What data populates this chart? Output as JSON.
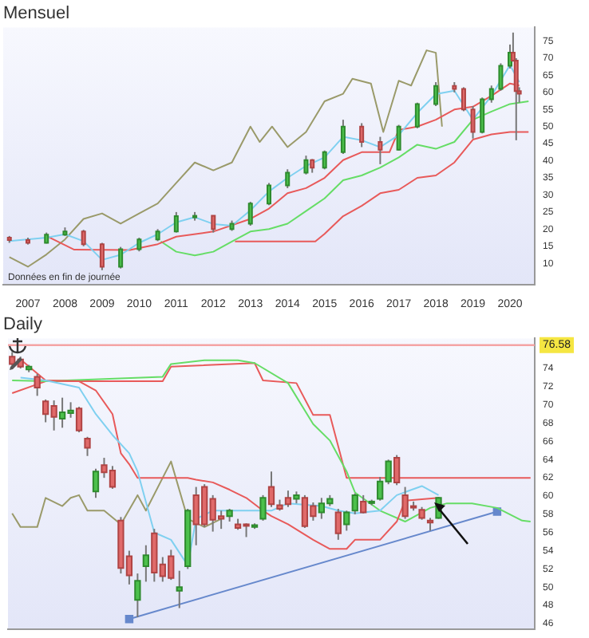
{
  "chart_data": [
    {
      "type": "candlestick",
      "title": "Mensuel",
      "annotations": [
        "Données en fin de journée"
      ],
      "marker": "none",
      "x": [
        "2006-07",
        "2007-01",
        "2007-07",
        "2008-01",
        "2008-07",
        "2009-01",
        "2009-07",
        "2010-01",
        "2010-07",
        "2011-01",
        "2011-07",
        "2012-01",
        "2012-07",
        "2013-01",
        "2013-07",
        "2014-01",
        "2014-07",
        "2014-09",
        "2015-01",
        "2015-07",
        "2016-01",
        "2016-07",
        "2017-01",
        "2017-07",
        "2018-01",
        "2018-07",
        "2018-10",
        "2019-01",
        "2019-04",
        "2019-07",
        "2019-10",
        "2020-01",
        "2020-02",
        "2020-03",
        "2020-04"
      ],
      "ohlc": [
        [
          17.5,
          18,
          16,
          16.8
        ],
        [
          16.8,
          17.5,
          15.5,
          16
        ],
        [
          16,
          19,
          15.8,
          18.4
        ],
        [
          18.4,
          20.5,
          18,
          19.3
        ],
        [
          19.3,
          19.8,
          15,
          15.6
        ],
        [
          15.6,
          16,
          8,
          9
        ],
        [
          9,
          14.8,
          8.5,
          14.1
        ],
        [
          14.1,
          17.5,
          13.5,
          17
        ],
        [
          17,
          20,
          16.5,
          19.3
        ],
        [
          19.3,
          25,
          19,
          23.8
        ],
        [
          23.8,
          25,
          22.5,
          23.9
        ],
        [
          23.9,
          24,
          19,
          20
        ],
        [
          20,
          22.5,
          19.5,
          21.6
        ],
        [
          21.6,
          28,
          21,
          27.5
        ],
        [
          27.5,
          33.5,
          27,
          32.8
        ],
        [
          32.8,
          37.5,
          32,
          36.5
        ],
        [
          36.5,
          41.5,
          36,
          40.2
        ],
        [
          40.2,
          40.5,
          36.5,
          38
        ],
        [
          38,
          43,
          37.5,
          42.5
        ],
        [
          42.5,
          52,
          42,
          50
        ],
        [
          50,
          51,
          44,
          45.5
        ],
        [
          45.5,
          47,
          39,
          43.2
        ],
        [
          43.2,
          50.5,
          43,
          50
        ],
        [
          50,
          57,
          49.5,
          56.6
        ],
        [
          56.6,
          63,
          56,
          61.9
        ],
        [
          61.9,
          63,
          60,
          61
        ],
        [
          61,
          61.5,
          54.5,
          55
        ],
        [
          55,
          56,
          46.5,
          48.4
        ],
        [
          48.4,
          58.5,
          48,
          58
        ],
        [
          58,
          62,
          57,
          61
        ],
        [
          61,
          68.5,
          60.5,
          67.8
        ],
        [
          67.8,
          74,
          67,
          71.6
        ],
        [
          71.6,
          77.5,
          69,
          69.3
        ],
        [
          69.3,
          70,
          46,
          60.4
        ],
        [
          60.4,
          61.5,
          57,
          59.6
        ]
      ],
      "series": [
        {
          "type": "line",
          "color": "#7fd0f0",
          "x": [
            "2006-07",
            "2007-07",
            "2008-01",
            "2008-07",
            "2009-01",
            "2009-07",
            "2010-01",
            "2010-07",
            "2011-01",
            "2011-07",
            "2012-01",
            "2012-07",
            "2013-01",
            "2013-07",
            "2014-01",
            "2014-07",
            "2015-01",
            "2015-07",
            "2016-01",
            "2016-07",
            "2017-01",
            "2017-07",
            "2018-01",
            "2018-07",
            "2019-01",
            "2019-07",
            "2020-01",
            "2020-04"
          ],
          "values": [
            16.5,
            17.5,
            18.5,
            16.5,
            11,
            12.5,
            16,
            18.5,
            22,
            23.5,
            21.5,
            21,
            25.5,
            31,
            35,
            38.5,
            41,
            47,
            46,
            44,
            47.5,
            54,
            59.5,
            60.5,
            52,
            59,
            68,
            63
          ]
        },
        {
          "type": "line",
          "color": "#e85a5a",
          "x": [
            "2007-07",
            "2008-04",
            "2009-10",
            "2010-07",
            "2011-01",
            "2012-01",
            "2013-01",
            "2013-07",
            "2014-01",
            "2014-07",
            "2015-01",
            "2015-07",
            "2016-01",
            "2016-10",
            "2017-01",
            "2017-07",
            "2018-01",
            "2018-07",
            "2019-01",
            "2019-07",
            "2020-01",
            "2020-04"
          ],
          "values": [
            18,
            14,
            13.9,
            15.6,
            17.8,
            19.3,
            23,
            26,
            30.5,
            32,
            35,
            40.2,
            42.5,
            42.5,
            49,
            50,
            52,
            55,
            55.8,
            59,
            62.6,
            62
          ]
        },
        {
          "type": "line",
          "color": "#9a9a6a",
          "x": [
            "2006-07",
            "2007-01",
            "2007-07",
            "2008-01",
            "2008-07",
            "2009-01",
            "2009-07",
            "2010-01",
            "2010-07",
            "2011-01",
            "2011-07",
            "2012-01",
            "2012-07",
            "2013-01",
            "2013-04",
            "2013-08",
            "2014-01",
            "2014-07",
            "2015-01",
            "2015-07",
            "2015-10",
            "2016-04",
            "2016-08",
            "2017-01",
            "2017-05",
            "2017-10",
            "2018-01",
            "2018-03"
          ],
          "values": [
            11.8,
            9,
            12.6,
            17,
            23,
            24.6,
            21.6,
            24.6,
            27.5,
            33.5,
            39.5,
            37.2,
            39.5,
            50,
            45.5,
            50,
            44,
            48.4,
            57.4,
            59.6,
            64,
            62.6,
            48.4,
            63.4,
            62,
            72.3,
            71.6,
            50
          ]
        },
        {
          "type": "line",
          "color": "#66dd66",
          "x": [
            "2010-08",
            "2011-01",
            "2011-07",
            "2012-01",
            "2012-07",
            "2013-01",
            "2013-07",
            "2014-01",
            "2014-07",
            "2015-01",
            "2015-07",
            "2016-01",
            "2016-07",
            "2017-01",
            "2017-07",
            "2018-01",
            "2018-07",
            "2019-01",
            "2019-07",
            "2020-01",
            "2020-07"
          ],
          "values": [
            16.4,
            13.4,
            12.3,
            13.4,
            16.4,
            19.3,
            20,
            21.6,
            25.3,
            29,
            34.3,
            35.7,
            38,
            41,
            44.7,
            43.5,
            45.5,
            52,
            54.4,
            56.6,
            57.4
          ]
        },
        {
          "type": "line",
          "color": "#e85a5a",
          "x": [
            "2012-08",
            "2014-10",
            "2015-01",
            "2015-07",
            "2016-01",
            "2016-07",
            "2017-01",
            "2017-07",
            "2018-01",
            "2018-07",
            "2019-01",
            "2019-07",
            "2020-01",
            "2020-07"
          ],
          "values": [
            16.4,
            16.4,
            18.6,
            23.8,
            26.8,
            30.5,
            31.5,
            35,
            35.7,
            39.5,
            46.2,
            47.7,
            48.4,
            48.4
          ]
        }
      ],
      "xlim": [
        "2006-05",
        "2020-09"
      ],
      "xticks": [
        "2007",
        "2008",
        "2009",
        "2010",
        "2011",
        "2012",
        "2013",
        "2014",
        "2015",
        "2016",
        "2017",
        "2018",
        "2019",
        "2020"
      ],
      "ylim": [
        3.7,
        79
      ],
      "yticks": [
        10,
        15,
        20,
        25,
        30,
        35,
        40,
        45,
        50,
        55,
        60,
        65,
        70,
        75
      ]
    },
    {
      "type": "candlestick",
      "title": "Daily",
      "marker": "none",
      "tick_labels": "y",
      "categories": [
        null,
        null,
        null,
        null,
        null,
        null,
        null,
        null,
        null,
        null,
        null,
        null,
        null,
        null,
        null,
        null,
        null,
        null,
        null,
        null,
        null,
        null,
        null,
        null,
        null,
        null,
        null,
        null,
        null,
        null,
        null,
        null,
        null,
        null,
        null,
        null,
        null,
        null,
        null,
        null,
        null,
        null,
        null,
        null,
        null,
        null,
        null,
        null,
        null,
        null,
        null,
        null,
        null,
        null,
        null,
        null,
        null,
        null,
        null,
        null,
        null,
        null,
        null
      ],
      "ohlc": [
        [
          75.3,
          75.8,
          74.3,
          74.5
        ],
        [
          75,
          75.3,
          74,
          74.2
        ],
        [
          73.9,
          74.4,
          73.6,
          74.2
        ],
        [
          73.1,
          73.4,
          71,
          71.9
        ],
        [
          70.4,
          70.6,
          68.1,
          69
        ],
        [
          69.9,
          70.5,
          67.2,
          68.7
        ],
        [
          68.5,
          70.8,
          67.5,
          69.2
        ],
        [
          69.1,
          70.3,
          68.6,
          69.4
        ],
        [
          69.6,
          69.8,
          67,
          67.2
        ],
        [
          66.3,
          66.5,
          64.4,
          65.3
        ],
        [
          60.5,
          63,
          59.8,
          62.7
        ],
        [
          63.4,
          64.2,
          62,
          62.6
        ],
        [
          62.8,
          63.3,
          60.8,
          61
        ],
        [
          57.3,
          57.7,
          51.5,
          52.1
        ],
        [
          53.4,
          54,
          50.3,
          51.3
        ],
        [
          48.6,
          51.5,
          46.7,
          50.7
        ],
        [
          52.3,
          54.6,
          50.6,
          53.5
        ],
        [
          55.9,
          56.4,
          50.6,
          51.6
        ],
        [
          52.5,
          53.3,
          50.6,
          51.2
        ],
        [
          53.4,
          54.1,
          50.8,
          51
        ],
        [
          49.6,
          51.8,
          47.7,
          50
        ],
        [
          52.3,
          58.6,
          52,
          58.4
        ],
        [
          60.1,
          61,
          54.6,
          56.9
        ],
        [
          61,
          61.3,
          56.6,
          56.9
        ],
        [
          59.7,
          60.1,
          56.1,
          57.4
        ],
        [
          57.8,
          58.4,
          56.4,
          57.5
        ],
        [
          57.8,
          58.6,
          57.2,
          58.4
        ],
        [
          56.9,
          57.5,
          56.3,
          56.5
        ],
        [
          56.9,
          57,
          55.5,
          56.8
        ],
        [
          56.6,
          57,
          56.4,
          56.8
        ],
        [
          57.5,
          60.1,
          57.3,
          59.8
        ],
        [
          61,
          62.7,
          58.8,
          59.1
        ],
        [
          59,
          59.6,
          58.4,
          58.6
        ],
        [
          59.8,
          60.6,
          58.8,
          59.1
        ],
        [
          59.7,
          60.5,
          59.2,
          60.1
        ],
        [
          59.8,
          60.1,
          56.5,
          56.7
        ],
        [
          58.9,
          59.3,
          57.3,
          57.8
        ],
        [
          58.2,
          59.8,
          57.5,
          59.2
        ],
        [
          59.2,
          60.1,
          58.9,
          59.7
        ],
        [
          58.2,
          58.6,
          55.2,
          55.9
        ],
        [
          56.9,
          58.4,
          56.2,
          58.2
        ],
        [
          58.4,
          60.3,
          58,
          60.1
        ],
        [
          59.4,
          60.1,
          58.1,
          58.2
        ],
        [
          59.3,
          59.6,
          59,
          59.4
        ],
        [
          59.7,
          62.1,
          59.5,
          61.6
        ],
        [
          61.6,
          64,
          61.3,
          63.8
        ],
        [
          64.2,
          64.5,
          61.2,
          61.5
        ],
        [
          60.1,
          61,
          57.5,
          57.8
        ],
        [
          58.9,
          59.4,
          58.4,
          58.8
        ],
        [
          58.5,
          58.8,
          57.4,
          57.6
        ],
        [
          57.3,
          57.6,
          56.2,
          57.1
        ],
        [
          57.6,
          59.9,
          57.5,
          59.8
        ],
        null,
        null,
        null,
        null,
        null,
        null,
        null,
        null,
        null,
        null,
        null
      ],
      "series": [
        {
          "type": "line",
          "color": "#7fd0f0",
          "values": [
            null,
            73,
            null,
            null,
            72.7,
            null,
            null,
            null,
            71.9,
            null,
            69,
            null,
            66.7,
            null,
            64.7,
            62.7,
            null,
            56,
            null,
            55.2,
            null,
            52.4,
            57.5,
            null,
            58.4,
            null,
            null,
            null,
            null,
            null,
            null,
            58.4,
            null,
            59.2,
            null,
            null,
            null,
            58.9,
            null,
            58.4,
            null,
            58.1,
            null,
            null,
            58.4,
            null,
            60.1,
            null,
            null,
            61.1,
            null,
            60.1,
            null,
            null,
            null,
            null,
            null,
            null,
            null,
            null,
            null,
            null,
            null
          ]
        },
        {
          "type": "line",
          "color": "#e85a5a",
          "values": [
            null,
            75,
            null,
            null,
            72.7,
            null,
            null,
            null,
            72.6,
            null,
            71.6,
            null,
            69,
            64.7,
            63.5,
            62,
            null,
            null,
            null,
            null,
            null,
            62,
            61.8,
            null,
            61.5,
            null,
            60.7,
            null,
            59.8,
            null,
            58.4,
            57.8,
            null,
            56.9,
            null,
            null,
            55.2,
            null,
            54.2,
            null,
            54.2,
            55.2,
            null,
            null,
            55.2,
            null,
            57.2,
            59.5,
            null,
            null,
            null,
            59.8,
            null,
            null,
            null,
            null,
            null,
            null,
            null,
            null,
            null,
            null,
            null
          ]
        },
        {
          "type": "line",
          "color": "#9a9a6a",
          "values": [
            58.1,
            56.6,
            null,
            56.6,
            59.8,
            null,
            58.9,
            59.8,
            60.1,
            58.4,
            null,
            58.4,
            null,
            56.9,
            null,
            60.1,
            58.4,
            null,
            null,
            63.8,
            null,
            57.5,
            null,
            56.6,
            null,
            57.5,
            null,
            null,
            null,
            null,
            null,
            null,
            null,
            null,
            null,
            null,
            null,
            null,
            null,
            null,
            null,
            null,
            null,
            null,
            null,
            null,
            null,
            null,
            null,
            null,
            null,
            null,
            null,
            null,
            null,
            null,
            null,
            null,
            null,
            null,
            null,
            null,
            null
          ]
        },
        {
          "type": "line",
          "color": "#66dd66",
          "values": [
            72.7,
            null,
            null,
            null,
            72.6,
            null,
            null,
            null,
            null,
            null,
            null,
            null,
            null,
            null,
            null,
            null,
            null,
            null,
            73.1,
            74.5,
            null,
            null,
            null,
            74.9,
            null,
            null,
            null,
            74.9,
            null,
            74.6,
            null,
            null,
            null,
            72.4,
            null,
            null,
            67.9,
            null,
            66.1,
            null,
            62.7,
            60.4,
            null,
            null,
            58.4,
            null,
            null,
            57.2,
            null,
            null,
            58.7,
            null,
            59.2,
            null,
            null,
            59.2,
            null,
            null,
            58.7,
            null,
            null,
            57.3,
            57.2
          ]
        },
        {
          "type": "line",
          "color": "#e85a5a",
          "values": [
            71.3,
            null,
            null,
            null,
            72.6,
            null,
            null,
            null,
            null,
            null,
            null,
            null,
            null,
            null,
            null,
            null,
            null,
            null,
            72.6,
            74.2,
            null,
            null,
            null,
            null,
            null,
            null,
            null,
            null,
            null,
            74.6,
            72.7,
            null,
            null,
            null,
            72.4,
            null,
            68.9,
            null,
            68.9,
            null,
            62,
            null,
            null,
            null,
            null,
            null,
            null,
            null,
            null,
            null,
            null,
            null,
            null,
            null,
            null,
            null,
            null,
            null,
            null,
            null,
            null,
            null,
            62
          ]
        },
        {
          "type": "line",
          "color": "#6688cc",
          "marker": "square",
          "values": [
            null,
            null,
            null,
            null,
            null,
            null,
            null,
            null,
            null,
            null,
            null,
            null,
            null,
            null,
            46.5,
            null,
            null,
            null,
            null,
            null,
            null,
            null,
            null,
            null,
            null,
            null,
            null,
            null,
            null,
            null,
            null,
            null,
            null,
            null,
            null,
            null,
            null,
            null,
            null,
            null,
            null,
            null,
            null,
            null,
            null,
            null,
            null,
            null,
            null,
            null,
            null,
            null,
            null,
            null,
            null,
            null,
            null,
            null,
            58.3,
            null,
            null,
            null,
            null
          ]
        }
      ],
      "ref_lines": [
        {
          "axis": "y",
          "value": 76.58,
          "label": "76.58",
          "color": "#f4a0a0"
        }
      ],
      "ylim": [
        45.4,
        77.3
      ],
      "yticks": [
        46,
        48,
        50,
        52,
        54,
        56,
        58,
        60,
        62,
        64,
        66,
        68,
        70,
        72,
        74
      ]
    }
  ]
}
